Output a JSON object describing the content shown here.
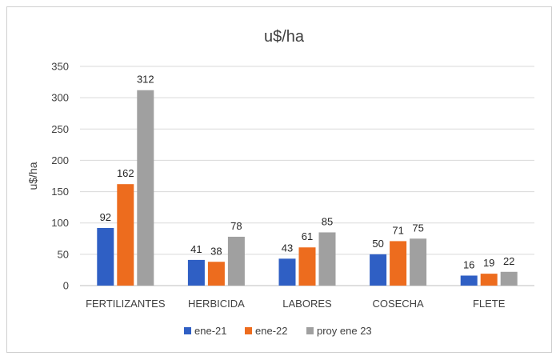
{
  "chart_data": {
    "type": "bar",
    "title": "u$/ha",
    "xlabel": "",
    "ylabel": "u$/ha",
    "ylim": [
      0,
      350
    ],
    "yticks": [
      0,
      50,
      100,
      150,
      200,
      250,
      300,
      350
    ],
    "grid": true,
    "legend_position": "bottom",
    "categories": [
      "FERTILIZANTES",
      "HERBICIDA",
      "LABORES",
      "COSECHA",
      "FLETE"
    ],
    "series": [
      {
        "name": "ene-21",
        "color": "#2f5fc4",
        "values": [
          92,
          41,
          43,
          50,
          16
        ]
      },
      {
        "name": "ene-22",
        "color": "#ed6c1e",
        "values": [
          162,
          38,
          61,
          71,
          19
        ]
      },
      {
        "name": "proy ene 23",
        "color": "#a0a0a0",
        "values": [
          312,
          78,
          85,
          75,
          22
        ]
      }
    ]
  }
}
